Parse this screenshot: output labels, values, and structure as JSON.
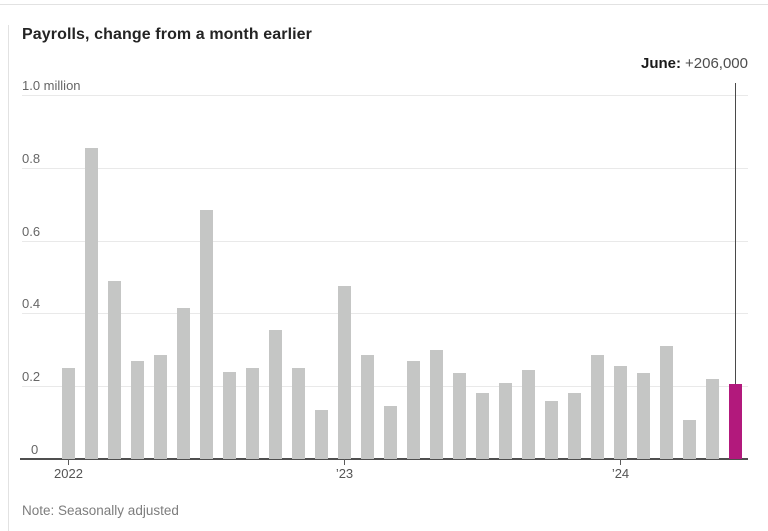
{
  "title": "Payrolls, change from a month earlier",
  "annotation": {
    "month_label": "June:",
    "value": "+206,000"
  },
  "note": "Note: Seasonally adjusted",
  "colors": {
    "bar": "#c5c6c5",
    "bar_highlight": "#b2197c",
    "gridline": "#e9e9e9",
    "axis_line": "#4f4f4f",
    "reference_line": "#4a4a4a",
    "title_text": "#242424",
    "axis_label_text": "#666666",
    "note_text": "#7d7d7d"
  },
  "chart_data": {
    "type": "bar",
    "title": "Payrolls, change from a month earlier",
    "unit": "million jobs",
    "xlabel": "",
    "ylabel": "",
    "ylim": [
      0,
      1.0
    ],
    "grid": true,
    "months": [
      "Jan 2022",
      "Feb 2022",
      "Mar 2022",
      "Apr 2022",
      "May 2022",
      "Jun 2022",
      "Jul 2022",
      "Aug 2022",
      "Sep 2022",
      "Oct 2022",
      "Nov 2022",
      "Dec 2022",
      "Jan 2023",
      "Feb 2023",
      "Mar 2023",
      "Apr 2023",
      "May 2023",
      "Jun 2023",
      "Jul 2023",
      "Aug 2023",
      "Sep 2023",
      "Oct 2023",
      "Nov 2023",
      "Dec 2023",
      "Jan 2024",
      "Feb 2024",
      "Mar 2024",
      "Apr 2024",
      "May 2024",
      "Jun 2024"
    ],
    "values": [
      0.25,
      0.855,
      0.49,
      0.27,
      0.285,
      0.415,
      0.685,
      0.24,
      0.25,
      0.355,
      0.25,
      0.135,
      0.475,
      0.285,
      0.145,
      0.27,
      0.3,
      0.235,
      0.18,
      0.21,
      0.245,
      0.16,
      0.18,
      0.285,
      0.255,
      0.235,
      0.31,
      0.107,
      0.22,
      0.206
    ],
    "highlight_index": 29,
    "highlight_annotation": "June: +206,000",
    "y_ticks": [
      {
        "value": 0,
        "label": "0"
      },
      {
        "value": 0.2,
        "label": "0.2"
      },
      {
        "value": 0.4,
        "label": "0.4"
      },
      {
        "value": 0.6,
        "label": "0.6"
      },
      {
        "value": 0.8,
        "label": "0.8"
      },
      {
        "value": 1.0,
        "label": "1.0 million"
      }
    ],
    "x_ticks": [
      {
        "index": 0,
        "label": "2022"
      },
      {
        "index": 12,
        "label": "’23"
      },
      {
        "index": 24,
        "label": "’24"
      }
    ]
  }
}
